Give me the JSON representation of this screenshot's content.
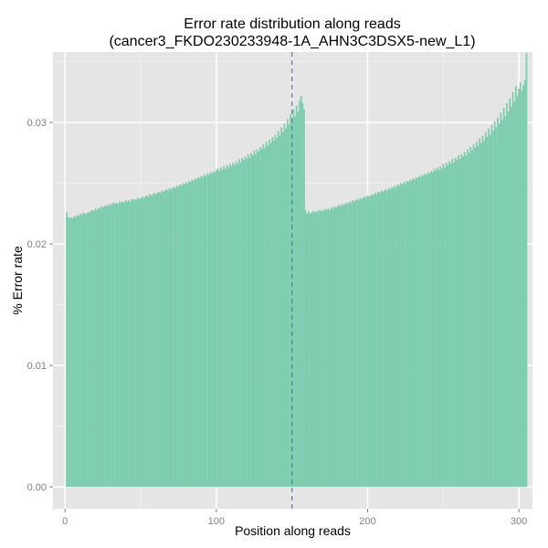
{
  "chart_data": {
    "type": "bar",
    "title_lines": [
      "Error rate distribution along reads",
      "(cancer3_FKDO230233948-1A_AHN3C3DSX5-new_L1)"
    ],
    "xlabel": "Position along reads",
    "ylabel": "% Error rate",
    "xlim": [
      -8,
      309
    ],
    "ylim": [
      -0.0018,
      0.0358
    ],
    "xticks": [
      0,
      100,
      200,
      300
    ],
    "yticks": [
      0.0,
      0.01,
      0.02,
      0.03
    ],
    "ytick_labels": [
      "0.00",
      "0.01",
      "0.02",
      "0.03"
    ],
    "grid": true,
    "vline": {
      "x": 150,
      "style": "dashed",
      "color": "#3b84c1"
    },
    "bar_color": "#7fcdaf",
    "panel_color": "#e5e5e5",
    "series": [
      {
        "x_start": 1,
        "values": [
          0.0226,
          0.0222,
          0.0221,
          0.0222,
          0.0221,
          0.0223,
          0.0222,
          0.0224,
          0.0223,
          0.0225,
          0.0224,
          0.0226,
          0.0225,
          0.0225,
          0.0226,
          0.0226,
          0.0227,
          0.0228,
          0.0227,
          0.0229,
          0.0228,
          0.023,
          0.0229,
          0.0231,
          0.023,
          0.0231,
          0.0232,
          0.0231,
          0.0233,
          0.0232,
          0.0233,
          0.0234,
          0.0233,
          0.0234,
          0.0233,
          0.0235,
          0.0234,
          0.0235,
          0.0234,
          0.0236,
          0.0235,
          0.0236,
          0.0235,
          0.0237,
          0.0236,
          0.0237,
          0.0236,
          0.0238,
          0.0237,
          0.0238,
          0.0239,
          0.0238,
          0.0239,
          0.024,
          0.0239,
          0.0241,
          0.024,
          0.0241,
          0.0242,
          0.0241,
          0.0242,
          0.0243,
          0.0242,
          0.0244,
          0.0243,
          0.0244,
          0.0245,
          0.0244,
          0.0246,
          0.0245,
          0.0246,
          0.0247,
          0.0246,
          0.0248,
          0.0247,
          0.0249,
          0.0248,
          0.025,
          0.0249,
          0.0251,
          0.025,
          0.0252,
          0.0251,
          0.0253,
          0.0252,
          0.0254,
          0.0253,
          0.0255,
          0.0254,
          0.0256,
          0.0255,
          0.0257,
          0.0256,
          0.0258,
          0.0257,
          0.0259,
          0.0258,
          0.026,
          0.0259,
          0.0261,
          0.0262,
          0.026,
          0.0263,
          0.0261,
          0.0264,
          0.0262,
          0.0265,
          0.0263,
          0.0266,
          0.0264,
          0.0267,
          0.0265,
          0.0268,
          0.0266,
          0.027,
          0.0267,
          0.0271,
          0.0269,
          0.0272,
          0.027,
          0.0274,
          0.0271,
          0.0275,
          0.0273,
          0.0277,
          0.0274,
          0.0278,
          0.0276,
          0.028,
          0.0278,
          0.0282,
          0.0279,
          0.0284,
          0.0281,
          0.0286,
          0.0283,
          0.0288,
          0.0285,
          0.029,
          0.0287,
          0.0293,
          0.0289,
          0.0296,
          0.0292,
          0.0299,
          0.0295,
          0.0303,
          0.0298,
          0.0307,
          0.0301,
          0.0311,
          0.0305,
          0.0314,
          0.0309,
          0.0318,
          0.0322,
          0.0316,
          0.0311,
          0.0228,
          0.0225,
          0.0227,
          0.0225,
          0.0226,
          0.0227,
          0.0226,
          0.0227,
          0.0226,
          0.0228,
          0.0227,
          0.0228,
          0.0227,
          0.0229,
          0.0228,
          0.0229,
          0.0228,
          0.023,
          0.0229,
          0.0231,
          0.023,
          0.0231,
          0.0232,
          0.0231,
          0.0233,
          0.0232,
          0.0233,
          0.0234,
          0.0233,
          0.0235,
          0.0234,
          0.0236,
          0.0235,
          0.0236,
          0.0237,
          0.0236,
          0.0238,
          0.0237,
          0.0238,
          0.0239,
          0.0238,
          0.024,
          0.0239,
          0.024,
          0.0241,
          0.024,
          0.0242,
          0.0241,
          0.0243,
          0.0242,
          0.0244,
          0.0243,
          0.0244,
          0.0245,
          0.0244,
          0.0246,
          0.0245,
          0.0247,
          0.0246,
          0.0248,
          0.0247,
          0.0249,
          0.0248,
          0.025,
          0.0249,
          0.0251,
          0.025,
          0.0252,
          0.0251,
          0.0253,
          0.0252,
          0.0254,
          0.0253,
          0.0255,
          0.0254,
          0.0256,
          0.0255,
          0.0257,
          0.0256,
          0.0258,
          0.0257,
          0.0259,
          0.0258,
          0.026,
          0.0259,
          0.0262,
          0.026,
          0.0263,
          0.0261,
          0.0264,
          0.0262,
          0.0266,
          0.0263,
          0.0267,
          0.0265,
          0.0268,
          0.0266,
          0.027,
          0.0267,
          0.0271,
          0.0269,
          0.0273,
          0.027,
          0.0274,
          0.0272,
          0.0276,
          0.0273,
          0.0278,
          0.0275,
          0.028,
          0.0277,
          0.0282,
          0.0279,
          0.0284,
          0.0281,
          0.0287,
          0.0283,
          0.0289,
          0.0285,
          0.0292,
          0.0288,
          0.0295,
          0.029,
          0.0298,
          0.0293,
          0.0301,
          0.0296,
          0.0304,
          0.0299,
          0.0308,
          0.0302,
          0.0312,
          0.0305,
          0.0316,
          0.0309,
          0.032,
          0.0313,
          0.0325,
          0.0317,
          0.033,
          0.0322,
          0.0328,
          0.0333,
          0.0326,
          0.0331,
          0.0335,
          0.0357
        ]
      }
    ]
  }
}
